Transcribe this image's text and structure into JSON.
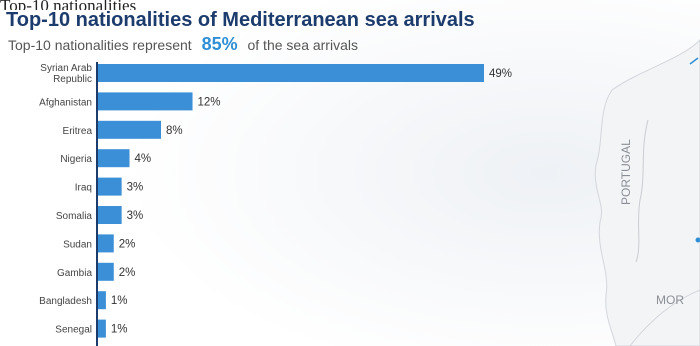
{
  "cropped_top_text": "Top-10 nationalities",
  "title": "Top-10 nationalities of Mediterranean sea arrivals",
  "subtitle": {
    "prefix": "Top-10 nationalities represent",
    "highlight": "85%",
    "suffix": "of the sea arrivals"
  },
  "map": {
    "labels": [
      "PORTUGAL",
      "MOR"
    ]
  },
  "colors": {
    "bar": "#3a8fd6",
    "title": "#1d3c6e",
    "highlight": "#2f8fd6",
    "axis": "#1d3c6e"
  },
  "chart_data": {
    "type": "bar",
    "orientation": "horizontal",
    "categories": [
      [
        "Syrian Arab",
        "Republic"
      ],
      [
        "Afghanistan"
      ],
      [
        "Eritrea"
      ],
      [
        "Nigeria"
      ],
      [
        "Iraq"
      ],
      [
        "Somalia"
      ],
      [
        "Sudan"
      ],
      [
        "Gambia"
      ],
      [
        "Bangladesh"
      ],
      [
        "Senegal"
      ]
    ],
    "values": [
      49,
      12,
      8,
      4,
      3,
      3,
      2,
      2,
      1,
      1
    ],
    "value_labels": [
      "49%",
      "12%",
      "8%",
      "4%",
      "3%",
      "3%",
      "2%",
      "2%",
      "1%",
      "1%"
    ],
    "unit": "%",
    "xlim": [
      0,
      49
    ],
    "grid": false,
    "legend": "none"
  }
}
